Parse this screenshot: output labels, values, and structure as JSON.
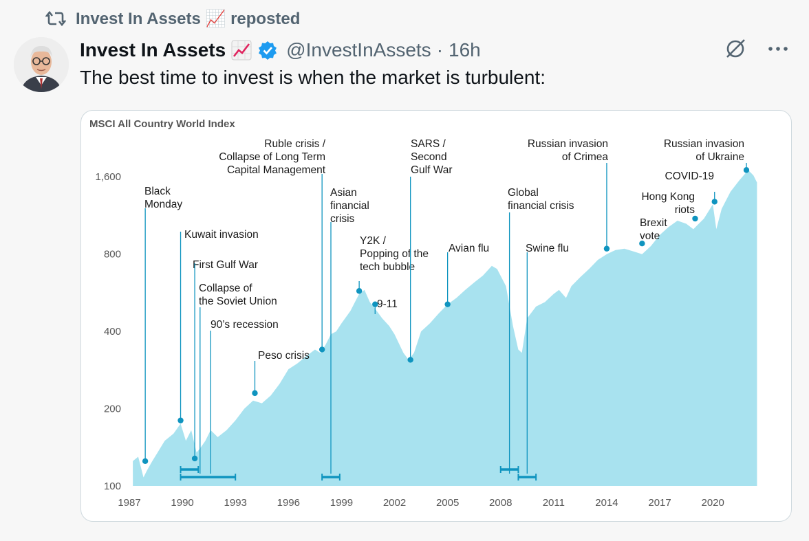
{
  "repost": {
    "text": "Invest In Assets 📈 reposted",
    "icon": "repost-icon"
  },
  "author": {
    "name": "Invest In Assets",
    "handle": "@InvestInAssets",
    "separator": "·",
    "time": "16h",
    "verified_color": "#1d9bf0"
  },
  "tweet": {
    "text": "The best time to invest is when the market is turbulent:"
  },
  "actions": {
    "grok_icon": "grok-icon",
    "more_icon": "more-icon"
  },
  "colors": {
    "area": "#a8e2ef",
    "marker": "#0f94bf",
    "text": "#1a1a1a",
    "axis_text": "#555555"
  },
  "chart_data": {
    "type": "area",
    "title": "MSCI All Country World Index",
    "ylim": [
      100,
      2000
    ],
    "y_scale": "log",
    "y_ticks": [
      100,
      200,
      400,
      800,
      1600
    ],
    "y_tick_labels": [
      "100",
      "200",
      "400",
      "800",
      "1,600"
    ],
    "x_ticks": [
      1987,
      1990,
      1993,
      1996,
      1999,
      2002,
      2005,
      2008,
      2011,
      2014,
      2017,
      2020
    ],
    "xlim": [
      1987,
      2022.6
    ],
    "series": [
      {
        "x": [
          1987.2,
          1987.5,
          1987.8,
          1988.0,
          1988.3,
          1988.6,
          1989.0,
          1989.5,
          1989.9,
          1990.2,
          1990.5,
          1990.8,
          1991.0,
          1991.3,
          1991.6,
          1992.0,
          1992.5,
          1993.0,
          1993.5,
          1994.0,
          1994.5,
          1995.0,
          1995.5,
          1996.0,
          1996.5,
          1997.0,
          1997.5,
          1997.8,
          1998.1,
          1998.4,
          1998.7,
          1999.0,
          1999.5,
          2000.0,
          2000.3,
          2000.6,
          2001.0,
          2001.3,
          2001.7,
          2002.0,
          2002.5,
          2002.8,
          2003.1,
          2003.5,
          2004.0,
          2004.5,
          2005.0,
          2005.5,
          2006.0,
          2006.5,
          2007.0,
          2007.5,
          2007.8,
          2008.3,
          2008.7,
          2009.0,
          2009.2,
          2009.5,
          2010.0,
          2010.5,
          2011.0,
          2011.3,
          2011.7,
          2012.0,
          2012.5,
          2013.0,
          2013.5,
          2014.0,
          2014.5,
          2015.0,
          2015.5,
          2016.0,
          2016.5,
          2017.0,
          2017.5,
          2018.0,
          2018.5,
          2018.9,
          2019.5,
          2020.0,
          2020.2,
          2020.5,
          2021.0,
          2021.5,
          2022.0,
          2022.3,
          2022.5
        ],
        "y": [
          125,
          130,
          108,
          115,
          125,
          135,
          150,
          160,
          175,
          150,
          165,
          135,
          140,
          150,
          165,
          155,
          165,
          180,
          200,
          215,
          210,
          225,
          250,
          285,
          300,
          320,
          340,
          330,
          355,
          390,
          400,
          430,
          480,
          560,
          580,
          520,
          480,
          450,
          420,
          390,
          330,
          310,
          330,
          400,
          430,
          470,
          510,
          540,
          580,
          620,
          660,
          720,
          700,
          600,
          420,
          340,
          330,
          450,
          500,
          520,
          560,
          580,
          540,
          600,
          650,
          700,
          760,
          800,
          830,
          840,
          820,
          800,
          860,
          950,
          1020,
          1080,
          1050,
          1000,
          1100,
          1250,
          1000,
          1200,
          1400,
          1550,
          1700,
          1620,
          1520
        ]
      }
    ],
    "annotations": [
      {
        "label": "Black\nMonday",
        "x": 1987.9,
        "y": 125
      },
      {
        "label": "Kuwait invasion",
        "x": 1989.9,
        "y": 180
      },
      {
        "label": "First Gulf War",
        "x": 1990.7,
        "y": 128
      },
      {
        "label": "Collapse of\nthe Soviet Union",
        "x": 1991.0,
        "y": null
      },
      {
        "label": "90’s recession",
        "x": 1991.6,
        "y": null
      },
      {
        "label": "Peso crisis",
        "x": 1994.1,
        "y": 230
      },
      {
        "label": "Ruble crisis /\nCollapse of Long Term\nCapital Management",
        "x": 1997.9,
        "y": 340
      },
      {
        "label": "Asian\nfinancial\ncrisis",
        "x": 1998.4,
        "y": null
      },
      {
        "label": "Y2K /\nPopping of the\ntech bubble",
        "x": 2000.0,
        "y": 575
      },
      {
        "label": "9-11",
        "x": 2000.9,
        "y": 510
      },
      {
        "label": "SARS /\nSecond\nGulf War",
        "x": 2002.9,
        "y": 310
      },
      {
        "label": "Avian flu",
        "x": 2005.0,
        "y": 510
      },
      {
        "label": "Global\nfinancial crisis",
        "x": 2008.5,
        "y": null
      },
      {
        "label": "Swine flu",
        "x": 2009.5,
        "y": null
      },
      {
        "label": "Russian invasion\nof Crimea",
        "x": 2014.0,
        "y": 840
      },
      {
        "label": "Brexit\nvote",
        "x": 2016.0,
        "y": 880
      },
      {
        "label": "Hong Kong\nriots",
        "x": 2019.0,
        "y": 1100
      },
      {
        "label": "COVID-19",
        "x": 2020.1,
        "y": 1280
      },
      {
        "label": "Russian invasion\nof Ukraine",
        "x": 2021.9,
        "y": 1700
      }
    ],
    "period_bars": [
      [
        1989.9,
        1990.9
      ],
      [
        1989.9,
        1993.0
      ],
      [
        1997.9,
        1998.9
      ],
      [
        2008.0,
        2009.0
      ],
      [
        2009.0,
        2010.0
      ]
    ]
  }
}
